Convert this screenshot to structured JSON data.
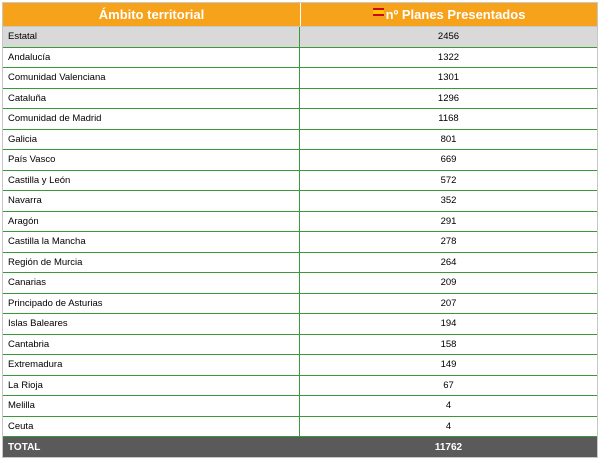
{
  "table": {
    "header": {
      "col1": "Ámbito territorial",
      "col2": "nº Planes Presentados",
      "col2_icon": "spain-flag-icon"
    },
    "rows": [
      {
        "region": "Estatal",
        "value": "2456"
      },
      {
        "region": "Andalucía",
        "value": "1322"
      },
      {
        "region": "Comunidad Valenciana",
        "value": "1301"
      },
      {
        "region": "Cataluña",
        "value": "1296"
      },
      {
        "region": "Comunidad de Madrid",
        "value": "1168"
      },
      {
        "region": "Galicia",
        "value": "801"
      },
      {
        "region": "País Vasco",
        "value": "669"
      },
      {
        "region": "Castilla y León",
        "value": "572"
      },
      {
        "region": "Navarra",
        "value": "352"
      },
      {
        "region": "Aragón",
        "value": "291"
      },
      {
        "region": "Castilla la Mancha",
        "value": "278"
      },
      {
        "region": "Región de Murcia",
        "value": "264"
      },
      {
        "region": "Canarias",
        "value": "209"
      },
      {
        "region": "Principado de Asturias",
        "value": "207"
      },
      {
        "region": "Islas Baleares",
        "value": "194"
      },
      {
        "region": "Cantabria",
        "value": "158"
      },
      {
        "region": "Extremadura",
        "value": "149"
      },
      {
        "region": "La Rioja",
        "value": "67"
      },
      {
        "region": "Melilla",
        "value": "4"
      },
      {
        "region": "Ceuta",
        "value": "4"
      }
    ],
    "total": {
      "label": "TOTAL",
      "value": "11762"
    }
  },
  "colors": {
    "header_bg": "#f7a21b",
    "shaded_row_bg": "#d9d9d9",
    "row_border": "#3a9a3a",
    "total_bg": "#5a5a5a"
  }
}
